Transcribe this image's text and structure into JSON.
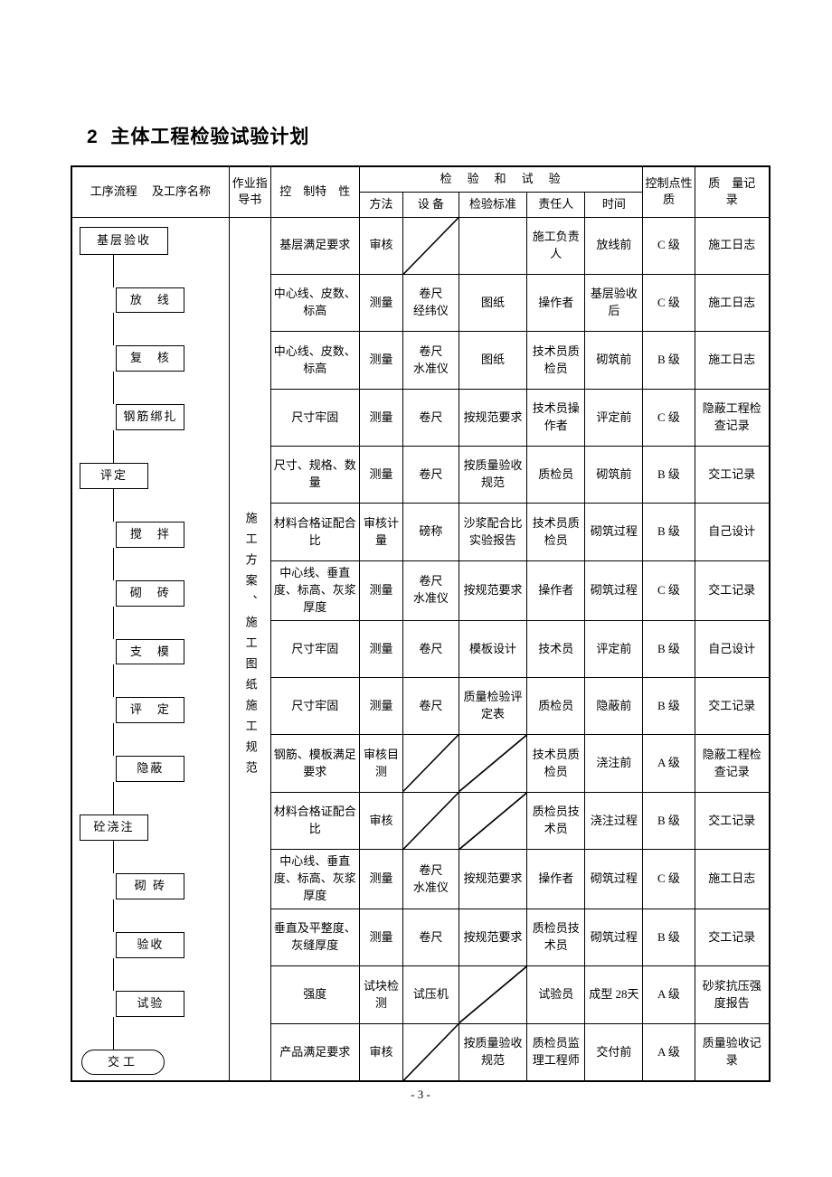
{
  "page": {
    "section_number": "2",
    "section_title": "主体工程检验试验计划",
    "page_number": "- 3 -"
  },
  "headers": {
    "flow": "工序流程　 及工序名称",
    "guide": "作业指导书",
    "control": "控　制特　性",
    "inspection_group": "检　验　和　试　验",
    "method": "方法",
    "equipment": "设 备",
    "standard": "检验标准",
    "responsible": "责任人",
    "time": "时间",
    "level": "控制点性质",
    "record": "质　量记　录"
  },
  "guide_text": "施工方案、施工图纸施工规范",
  "flow": [
    {
      "type": "hex",
      "label": "基层验收"
    },
    {
      "type": "box",
      "label": "放　线"
    },
    {
      "type": "box",
      "label": "复　核"
    },
    {
      "type": "box",
      "label": "钢筋绑扎"
    },
    {
      "type": "box-left",
      "label": "评定"
    },
    {
      "type": "box",
      "label": "搅　拌"
    },
    {
      "type": "box",
      "label": "砌　砖"
    },
    {
      "type": "box",
      "label": "支　模"
    },
    {
      "type": "box",
      "label": "评　定"
    },
    {
      "type": "box",
      "label": "隐蔽"
    },
    {
      "type": "box-left",
      "label": "砼浇注"
    },
    {
      "type": "box",
      "label": "砌 砖"
    },
    {
      "type": "box",
      "label": "验收"
    },
    {
      "type": "box",
      "label": "试验"
    },
    {
      "type": "term",
      "label": "交工"
    }
  ],
  "rows": [
    {
      "control": "基层满足要求",
      "method": "审核",
      "equipment": "DIAG",
      "standard": "",
      "responsible": "施工负责人",
      "time": "放线前",
      "level": "C 级",
      "record": "施工日志"
    },
    {
      "control": "中心线、皮数、标高",
      "method": "测量",
      "equipment": "卷尺\n经纬仪",
      "standard": "图纸",
      "responsible": "操作者",
      "time": "基层验收后",
      "level": "C 级",
      "record": "施工日志"
    },
    {
      "control": "中心线、皮数、标高",
      "method": "测量",
      "equipment": "卷尺\n水准仪",
      "standard": "图纸",
      "responsible": "技术员质检员",
      "time": "砌筑前",
      "level": "B 级",
      "record": "施工日志"
    },
    {
      "control": "尺寸牢固",
      "method": "测量",
      "equipment": "卷尺",
      "standard": "按规范要求",
      "responsible": "技术员操作者",
      "time": "评定前",
      "level": "C 级",
      "record": "隐蔽工程检查记录"
    },
    {
      "control": "尺寸、规格、数量",
      "method": "测量",
      "equipment": "卷尺",
      "standard": "按质量验收规范",
      "responsible": "质检员",
      "time": "砌筑前",
      "level": "B 级",
      "record": "交工记录"
    },
    {
      "control": "材料合格证配合比",
      "method": "审核计量",
      "equipment": "磅称",
      "standard": "沙浆配合比实验报告",
      "responsible": "技术员质检员",
      "time": "砌筑过程",
      "level": "B 级",
      "record": "自己设计"
    },
    {
      "control": "中心线、垂直度、标高、灰浆厚度",
      "method": "测量",
      "equipment": "卷尺\n水准仪",
      "standard": "按规范要求",
      "responsible": "操作者",
      "time": "砌筑过程",
      "level": "C 级",
      "record": "交工记录"
    },
    {
      "control": "尺寸牢固",
      "method": "测量",
      "equipment": "卷尺",
      "standard": "模板设计",
      "responsible": "技术员",
      "time": "评定前",
      "level": "B 级",
      "record": "自己设计"
    },
    {
      "control": "尺寸牢固",
      "method": "测量",
      "equipment": "卷尺",
      "standard": "质量检验评定表",
      "responsible": "质检员",
      "time": "隐蔽前",
      "level": "B 级",
      "record": "交工记录"
    },
    {
      "control": "钢筋、模板满足要求",
      "method": "审核目测",
      "equipment": "DIAG",
      "standard": "DIAG",
      "responsible": "技术员质检员",
      "time": "浇注前",
      "level": "A 级",
      "record": "隐蔽工程检查记录"
    },
    {
      "control": "材料合格证配合比",
      "method": "审核",
      "equipment": "DIAG",
      "standard": "DIAG",
      "responsible": "质检员技术员",
      "time": "浇注过程",
      "level": "B 级",
      "record": "交工记录"
    },
    {
      "control": "中心线、垂直度、标高、灰浆厚度",
      "method": "测量",
      "equipment": "卷尺\n水准仪",
      "standard": "按规范要求",
      "responsible": "操作者",
      "time": "砌筑过程",
      "level": "C 级",
      "record": "施工日志"
    },
    {
      "control": "垂直及平整度、灰缝厚度",
      "method": "测量",
      "equipment": "卷尺",
      "standard": "按规范要求",
      "responsible": "质检员技术员",
      "time": "砌筑过程",
      "level": "B 级",
      "record": "交工记录"
    },
    {
      "control": "强度",
      "method": "试块检测",
      "equipment": "试压机",
      "standard": "DIAG",
      "responsible": "试验员",
      "time": "成型 28天",
      "level": "A 级",
      "record": "砂浆抗压强度报告"
    },
    {
      "control": "产品满足要求",
      "method": "审核",
      "equipment": "DIAG",
      "standard": "按质量验收规范",
      "responsible": "质检员监理工程师",
      "time": "交付前",
      "level": "A 级",
      "record": "质量验收记录"
    }
  ]
}
